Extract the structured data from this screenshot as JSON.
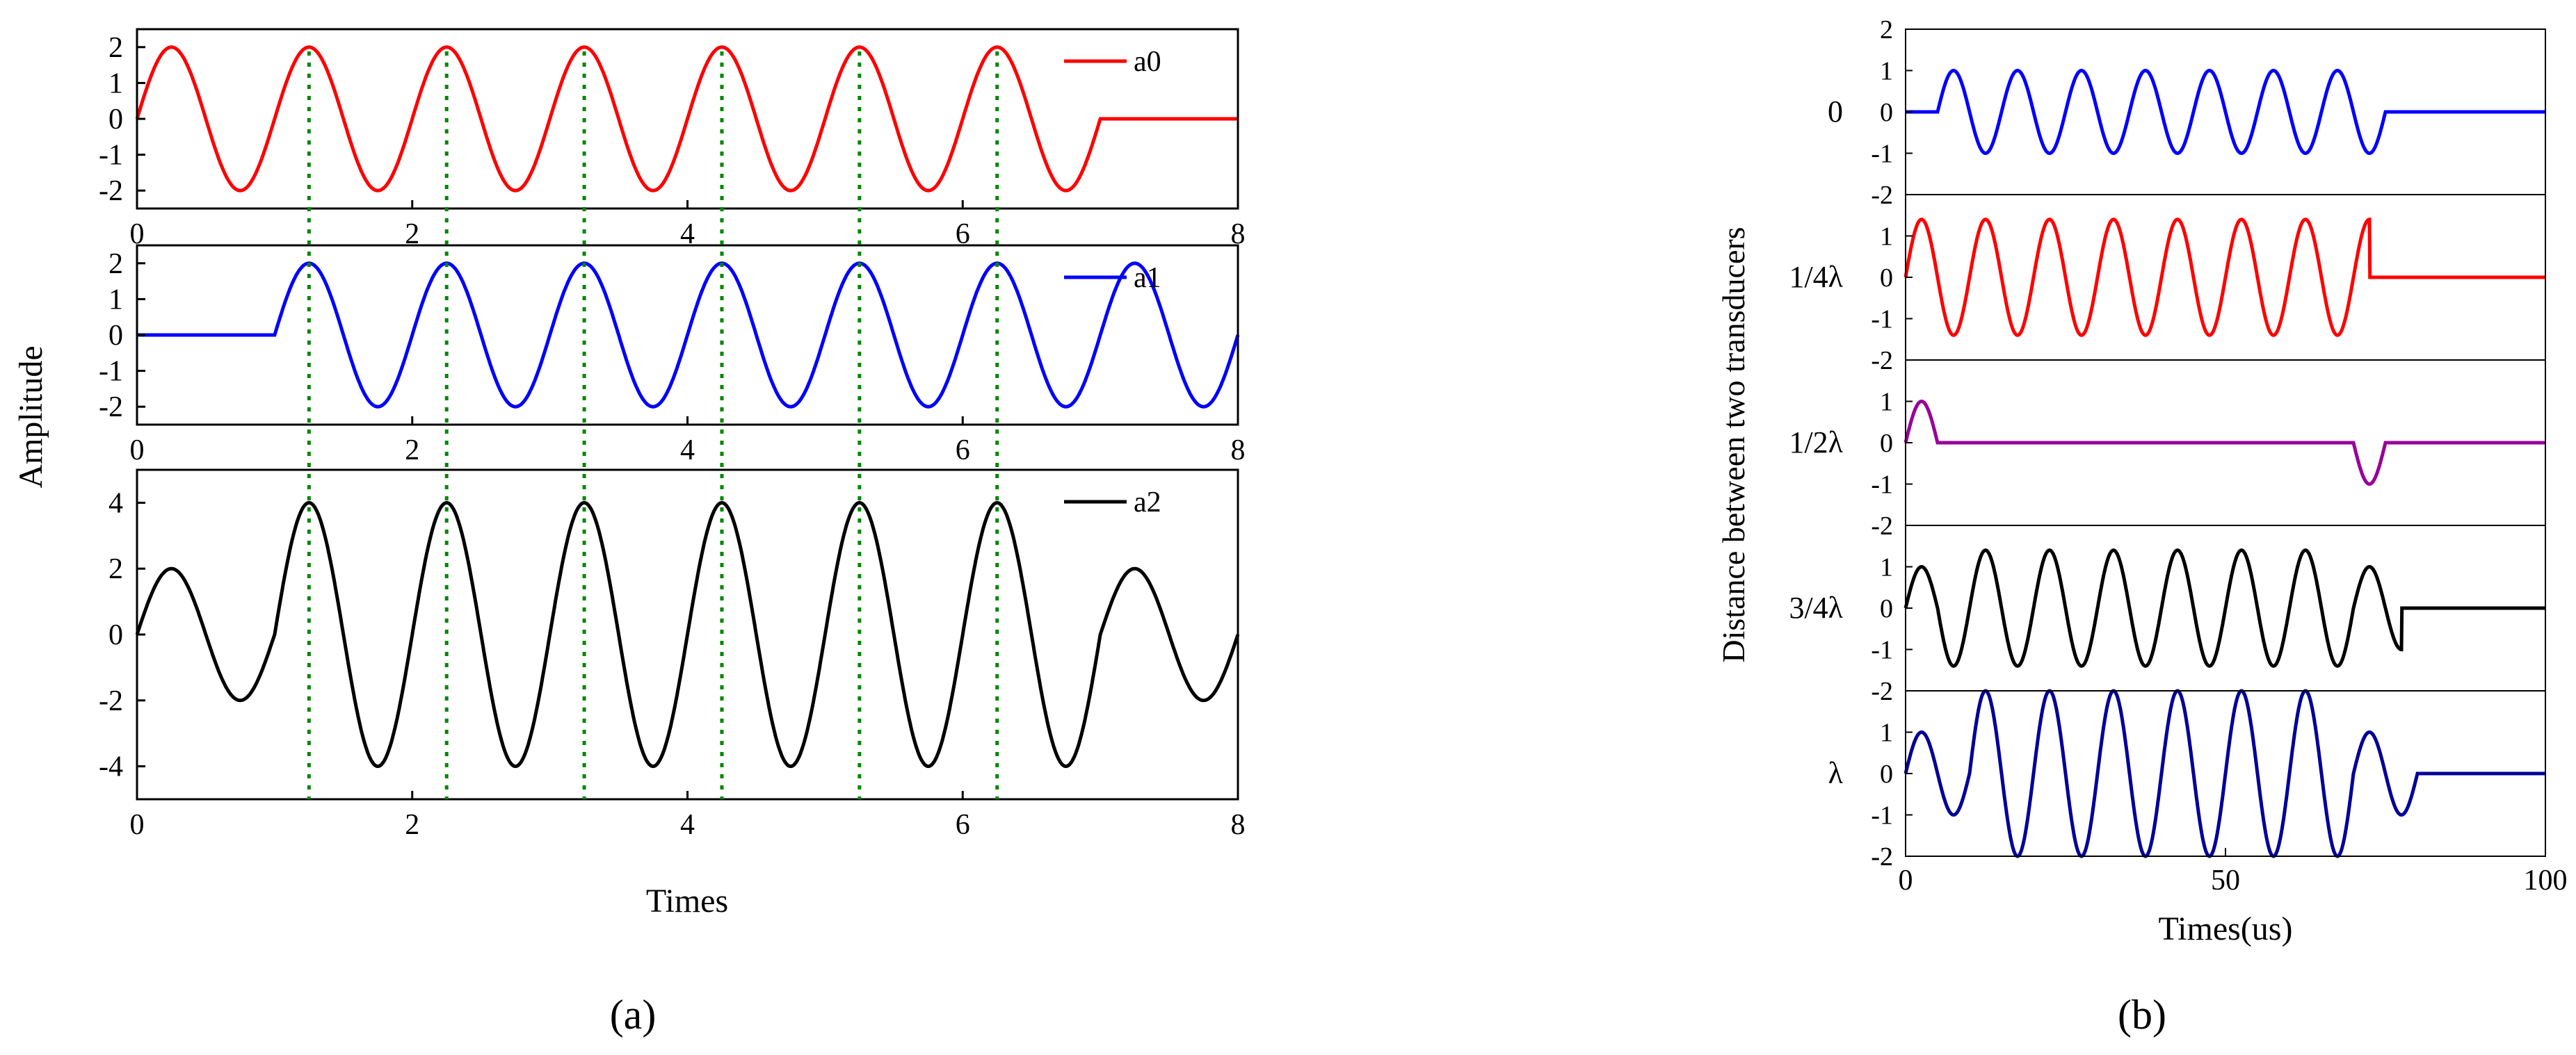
{
  "captions": {
    "left": "(a)",
    "right": "(b)"
  },
  "chart_data": [
    {
      "id": "a",
      "type": "line",
      "ylabel": "Amplitude",
      "xlabel": "Times",
      "marker_lines_x": [
        1.25,
        2.25,
        3.25,
        4.25,
        5.25,
        6.25
      ],
      "marker_color": "#008800",
      "panels": [
        {
          "series": [
            {
              "name": "a0",
              "color": "#ff0000",
              "segments": [
                {
                  "from": 0,
                  "to": 7,
                  "amp": 2,
                  "offset": 0
                }
              ]
            }
          ],
          "xlim": [
            0,
            8
          ],
          "ylim": [
            -2.5,
            2.5
          ],
          "xticks": [
            0,
            2,
            4,
            6,
            8
          ],
          "xtick_labels": [
            "0",
            "2",
            "4",
            "6",
            "8"
          ],
          "yticks": [
            2,
            1,
            0,
            -1,
            -2
          ],
          "ytick_labels": [
            "2",
            "1",
            "0",
            "-1",
            "-2"
          ],
          "legend": "top-right"
        },
        {
          "series": [
            {
              "name": "a1",
              "color": "#0000ff",
              "segments": [
                {
                  "from": 1,
                  "to": 8,
                  "amp": 2,
                  "offset": 1
                }
              ]
            }
          ],
          "xlim": [
            0,
            8
          ],
          "ylim": [
            -2.5,
            2.5
          ],
          "xticks": [
            0,
            2,
            4,
            6,
            8
          ],
          "xtick_labels": [
            "0",
            "2",
            "4",
            "6",
            "8"
          ],
          "yticks": [
            2,
            1,
            0,
            -1,
            -2
          ],
          "ytick_labels": [
            "2",
            "1",
            "0",
            "-1",
            "-2"
          ],
          "legend": "top-right"
        },
        {
          "series": [
            {
              "name": "a2",
              "color": "#000000",
              "segments": [
                {
                  "from": 0,
                  "to": 8,
                  "amp": 2,
                  "offset": 0
                },
                {
                  "from": 1,
                  "to": 7,
                  "amp": 2,
                  "offset": 1
                }
              ]
            }
          ],
          "xlim": [
            0,
            8
          ],
          "ylim": [
            -5,
            5
          ],
          "xticks": [
            0,
            2,
            4,
            6,
            8
          ],
          "xtick_labels": [
            "0",
            "2",
            "4",
            "6",
            "8"
          ],
          "yticks": [
            4,
            2,
            0,
            -2,
            -4
          ],
          "ytick_labels": [
            "4",
            "2",
            "0",
            "-2",
            "-4"
          ],
          "legend": "top-right"
        }
      ]
    },
    {
      "id": "b",
      "type": "line",
      "ylabel": "Distance between two transducers",
      "xlabel": "Times(us)",
      "period_us": 10,
      "xlim": [
        0,
        100
      ],
      "xticks": [
        0,
        50,
        100
      ],
      "xtick_labels": [
        "0",
        "50",
        "100"
      ],
      "panels": [
        {
          "label": "0",
          "color": "#0000ff",
          "ylim": [
            -2,
            2
          ],
          "amp": 1,
          "burst_start": 5,
          "burst_end": 75,
          "yticks": [
            2,
            1,
            0,
            -1,
            -2
          ],
          "ytick_labels": [
            "2",
            "1",
            "0",
            "-1",
            "-2"
          ]
        },
        {
          "label": "1/4λ",
          "color": "#ff0000",
          "ylim": [
            -2,
            2
          ],
          "amp": 1.4,
          "burst_start": 0,
          "burst_end": 72.5,
          "yticks": [
            1,
            0,
            -1,
            -2
          ],
          "ytick_labels": [
            "1",
            "0",
            "-1",
            "-2"
          ]
        },
        {
          "label": "1/2λ",
          "color": "#990099",
          "ylim": [
            -2,
            2
          ],
          "pulses": [
            {
              "start": 0,
              "end": 5,
              "amp": 1
            },
            {
              "start": 70,
              "end": 75,
              "amp": -1
            }
          ],
          "yticks": [
            1,
            0,
            -1,
            -2
          ],
          "ytick_labels": [
            "1",
            "0",
            "-1",
            "-2"
          ]
        },
        {
          "label": "3/4λ",
          "color": "#000000",
          "ylim": [
            -2,
            2
          ],
          "amp": 1.4,
          "burst_start": 0,
          "burst_end": 77.5,
          "head_amp": 1,
          "head_end": 5,
          "tail_amp": 1,
          "tail_start": 70,
          "yticks": [
            1,
            0,
            -1,
            -2
          ],
          "ytick_labels": [
            "1",
            "0",
            "-1",
            "-2"
          ]
        },
        {
          "label": "λ",
          "color": "#000099",
          "ylim": [
            -2,
            2
          ],
          "amp": 2,
          "burst_start": 0,
          "burst_end": 80,
          "head_amp": 1,
          "head_end": 10,
          "tail_amp": 1,
          "tail_start": 70,
          "yticks": [
            -2,
            1,
            0,
            -1,
            -2
          ],
          "ytick_labels": [
            "-2",
            "1",
            "0",
            "-1",
            "-2"
          ]
        }
      ]
    }
  ]
}
